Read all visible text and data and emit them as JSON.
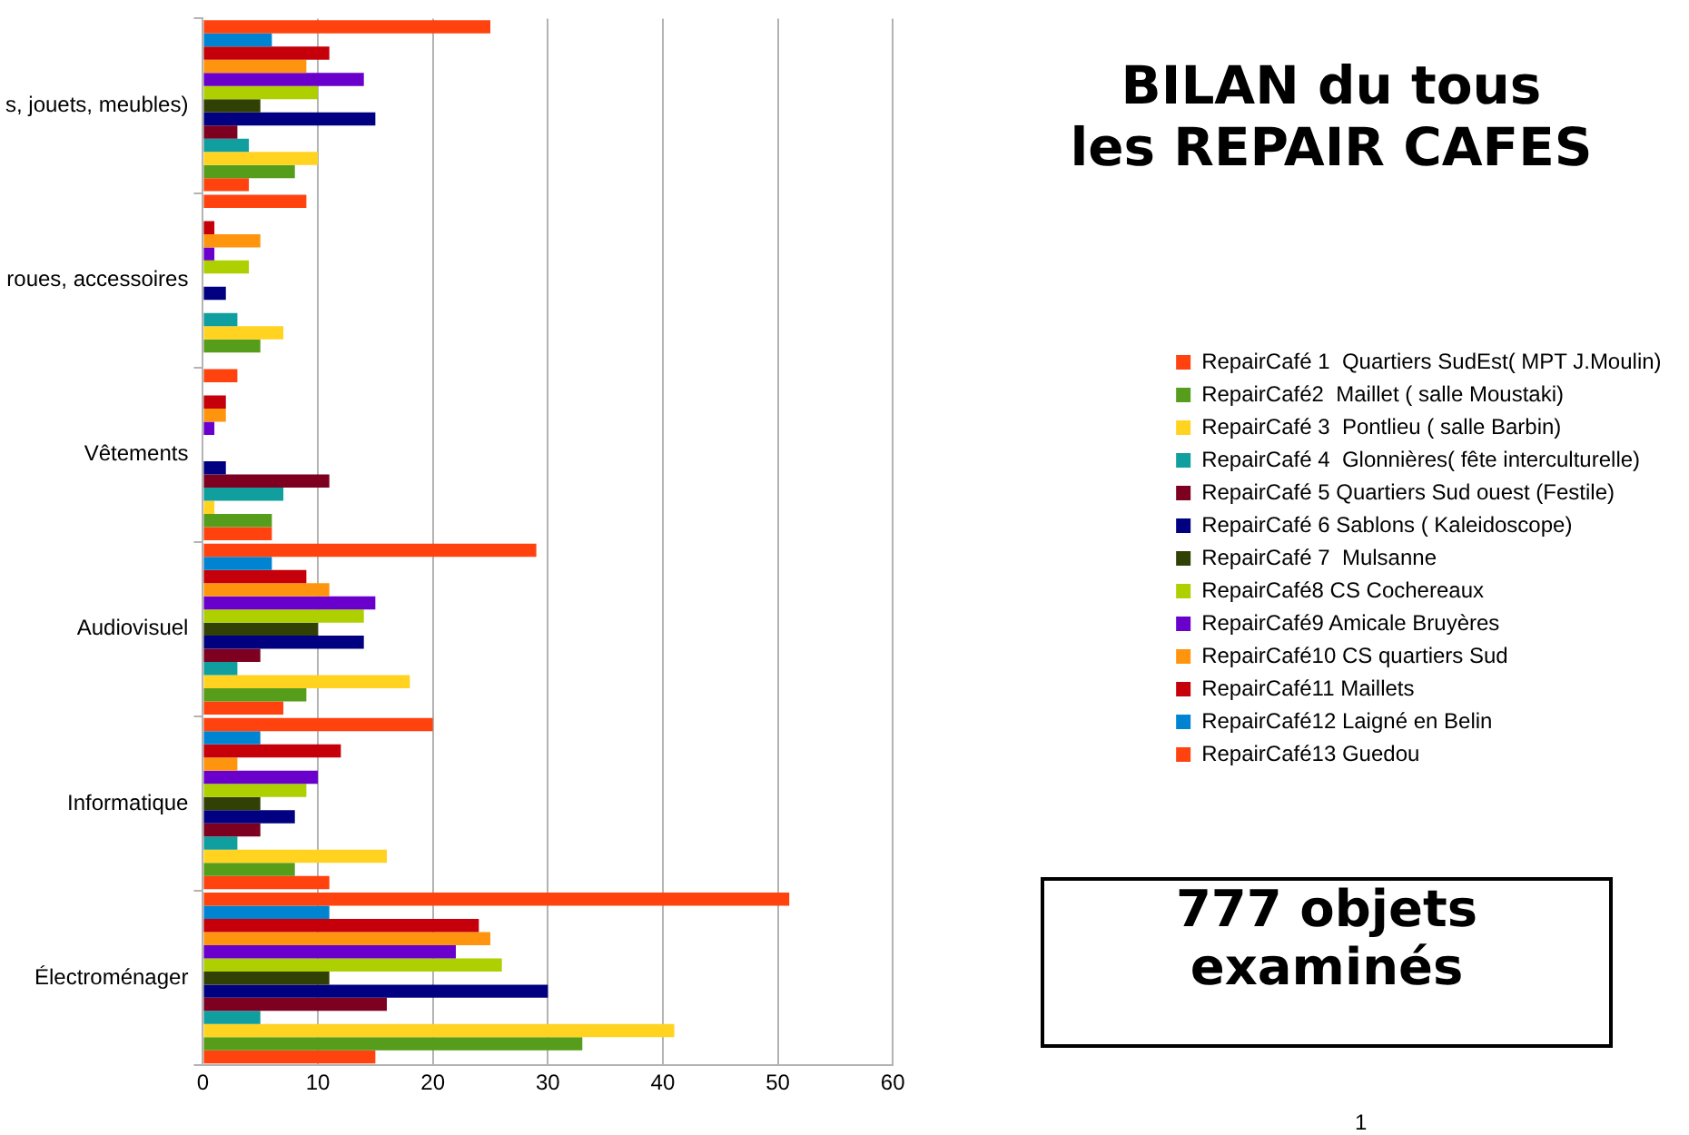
{
  "chart_data": {
    "type": "bar",
    "orientation": "horizontal",
    "title": "BILAN du tous\nles REPAIR CAFES",
    "categories": [
      "s, jouets, meubles)",
      "roues, accessoires",
      "Vêtements",
      "Audiovisuel",
      "Informatique",
      "Électroménager"
    ],
    "series": [
      {
        "name": "RepairCafé 1  Quartiers SudEst( MPT J.Moulin)",
        "color": "#ff420e",
        "values": [
          4,
          0,
          6,
          7,
          11,
          15
        ]
      },
      {
        "name": "RepairCafé2  Maillet ( salle Moustaki)",
        "color": "#579d1c",
        "values": [
          8,
          5,
          6,
          9,
          8,
          33
        ]
      },
      {
        "name": "RepairCafé 3  Pontlieu ( salle Barbin)",
        "color": "#ffd320",
        "values": [
          10,
          7,
          1,
          18,
          16,
          41
        ]
      },
      {
        "name": "RepairCafé 4  Glonnières( fête interculturelle)",
        "color": "#109e9e",
        "values": [
          4,
          3,
          7,
          3,
          3,
          5
        ]
      },
      {
        "name": "RepairCafé 5 Quartiers Sud ouest (Festile)",
        "color": "#7e0021",
        "values": [
          3,
          0,
          11,
          5,
          5,
          16
        ]
      },
      {
        "name": "RepairCafé 6 Sablons ( Kaleidoscope)",
        "color": "#000080",
        "values": [
          15,
          2,
          2,
          14,
          8,
          30
        ]
      },
      {
        "name": "RepairCafé 7  Mulsanne",
        "color": "#314004",
        "values": [
          5,
          0,
          0,
          10,
          5,
          11
        ]
      },
      {
        "name": "RepairCafé8 CS Cochereaux",
        "color": "#aecf00",
        "values": [
          10,
          4,
          0,
          14,
          9,
          26
        ]
      },
      {
        "name": "RepairCafé9 Amicale Bruyères",
        "color": "#6a00cc",
        "values": [
          14,
          1,
          1,
          15,
          10,
          22
        ]
      },
      {
        "name": "RepairCafé10 CS quartiers Sud",
        "color": "#ff950e",
        "values": [
          9,
          5,
          2,
          11,
          3,
          25
        ]
      },
      {
        "name": "RepairCafé11 Maillets",
        "color": "#c5000b",
        "values": [
          11,
          1,
          2,
          9,
          12,
          24
        ]
      },
      {
        "name": "RepairCafé12 Laigné en Belin",
        "color": "#0084d1",
        "values": [
          6,
          0,
          0,
          6,
          5,
          11
        ]
      },
      {
        "name": "RepairCafé13 Guedou",
        "color": "#ff420e",
        "values": [
          25,
          9,
          3,
          29,
          20,
          51
        ]
      }
    ],
    "xlim": [
      0,
      60
    ],
    "xticks": [
      0,
      10,
      20,
      30,
      40,
      50,
      60
    ],
    "grid": "x",
    "legend": "right",
    "annotations": [
      "777 objets\nexaminés",
      "1"
    ]
  }
}
